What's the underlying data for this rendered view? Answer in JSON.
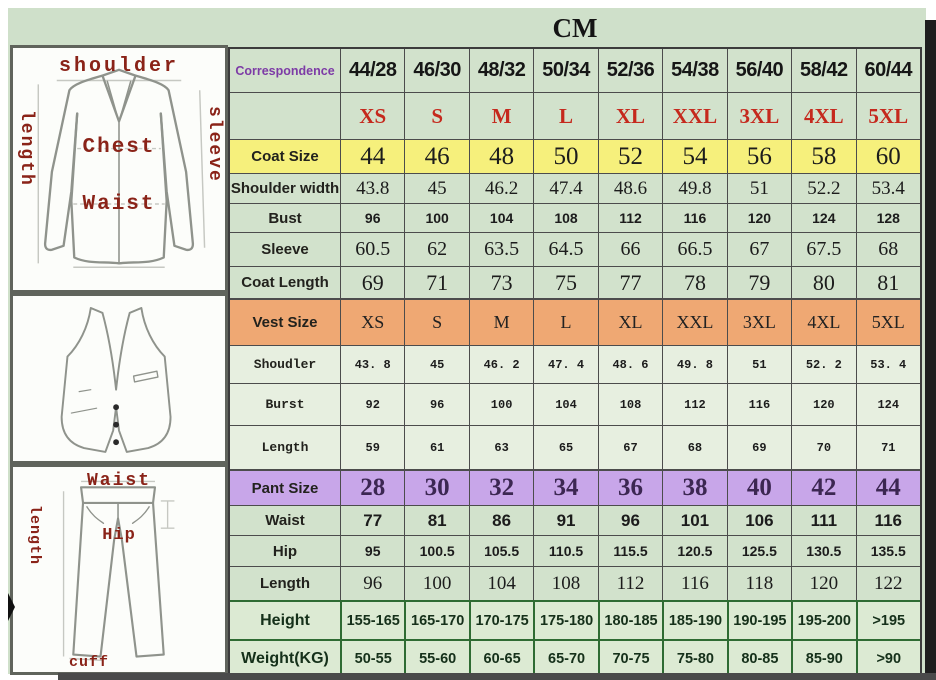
{
  "title": "CM",
  "colors": {
    "background_green": "#cfe0ca",
    "coat_size_row_yellow": "#f6f07c",
    "vest_size_row_orange": "#efa873",
    "pant_size_row_purple": "#c8a6e9",
    "size_letters_red": "#c5291d",
    "correspondence_purple": "#7d3ba6",
    "height_weight_border_green": "#2f6b33",
    "diagram_label_red": "#8a2318"
  },
  "table": {
    "rows": [
      {
        "label": "Correspondence",
        "values": [
          "44/28",
          "46/30",
          "48/32",
          "50/34",
          "52/36",
          "54/38",
          "56/40",
          "58/42",
          "60/44"
        ]
      },
      {
        "label": "",
        "values": [
          "XS",
          "S",
          "M",
          "L",
          "XL",
          "XXL",
          "3XL",
          "4XL",
          "5XL"
        ]
      },
      {
        "label": "Coat Size",
        "values": [
          "44",
          "46",
          "48",
          "50",
          "52",
          "54",
          "56",
          "58",
          "60"
        ]
      },
      {
        "label": "Shoulder width",
        "values": [
          "43.8",
          "45",
          "46.2",
          "47.4",
          "48.6",
          "49.8",
          "51",
          "52.2",
          "53.4"
        ]
      },
      {
        "label": "Bust",
        "values": [
          "96",
          "100",
          "104",
          "108",
          "112",
          "116",
          "120",
          "124",
          "128"
        ]
      },
      {
        "label": "Sleeve",
        "values": [
          "60.5",
          "62",
          "63.5",
          "64.5",
          "66",
          "66.5",
          "67",
          "67.5",
          "68"
        ]
      },
      {
        "label": "Coat Length",
        "values": [
          "69",
          "71",
          "73",
          "75",
          "77",
          "78",
          "79",
          "80",
          "81"
        ]
      },
      {
        "label": "Vest Size",
        "values": [
          "XS",
          "S",
          "M",
          "L",
          "XL",
          "XXL",
          "3XL",
          "4XL",
          "5XL"
        ]
      },
      {
        "label": "Shoudler",
        "values": [
          "43. 8",
          "45",
          "46. 2",
          "47. 4",
          "48. 6",
          "49. 8",
          "51",
          "52. 2",
          "53. 4"
        ]
      },
      {
        "label": "Burst",
        "values": [
          "92",
          "96",
          "100",
          "104",
          "108",
          "112",
          "116",
          "120",
          "124"
        ]
      },
      {
        "label": "Length",
        "values": [
          "59",
          "61",
          "63",
          "65",
          "67",
          "68",
          "69",
          "70",
          "71"
        ]
      },
      {
        "label": "Pant Size",
        "values": [
          "28",
          "30",
          "32",
          "34",
          "36",
          "38",
          "40",
          "42",
          "44"
        ]
      },
      {
        "label": "Waist",
        "values": [
          "77",
          "81",
          "86",
          "91",
          "96",
          "101",
          "106",
          "111",
          "116"
        ]
      },
      {
        "label": "Hip",
        "values": [
          "95",
          "100.5",
          "105.5",
          "110.5",
          "115.5",
          "120.5",
          "125.5",
          "130.5",
          "135.5"
        ]
      },
      {
        "label": "Length",
        "values": [
          "96",
          "100",
          "104",
          "108",
          "112",
          "116",
          "118",
          "120",
          "122"
        ]
      },
      {
        "label": "Height",
        "values": [
          "155-165",
          "165-170",
          "170-175",
          "175-180",
          "180-185",
          "185-190",
          "190-195",
          "195-200",
          ">195"
        ]
      },
      {
        "label": "Weight(KG)",
        "values": [
          "50-55",
          "55-60",
          "60-65",
          "65-70",
          "70-75",
          "75-80",
          "80-85",
          "85-90",
          ">90"
        ]
      }
    ]
  },
  "diagrams": {
    "jacket": {
      "shoulder": "shoulder",
      "length": "length",
      "sleeve": "sleeve",
      "chest": "Chest",
      "waist": "Waist"
    },
    "pants": {
      "waist": "Waist",
      "length": "length",
      "hip": "Hip",
      "cuff": "cuff"
    }
  }
}
